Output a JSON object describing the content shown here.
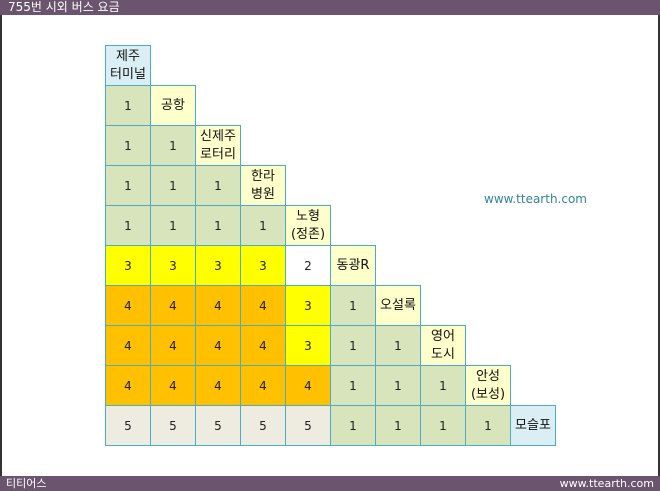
{
  "title": "755번 시외 버스 요금",
  "footer": {
    "left": "티티어스",
    "right": "www.ttearth.com"
  },
  "watermark": "www.ttearth.com",
  "colors": {
    "header_blue": "#daeef3",
    "header_yellow": "#ffffcc",
    "green": "#d7e4bc",
    "yellow": "#ffff00",
    "orange": "#ffc000",
    "grey": "#eeece1",
    "white": "#ffffff",
    "border": "#4bacc6"
  },
  "rows": [
    {
      "stop": "제주\n터미널",
      "stop_color": "header_blue",
      "fares": []
    },
    {
      "stop": "공항",
      "stop_color": "header_yellow",
      "fares": [
        {
          "v": "1",
          "c": "green"
        }
      ]
    },
    {
      "stop": "신제주\n로터리",
      "stop_color": "header_yellow",
      "fares": [
        {
          "v": "1",
          "c": "green"
        },
        {
          "v": "1",
          "c": "green"
        }
      ]
    },
    {
      "stop": "한라\n병원",
      "stop_color": "header_yellow",
      "fares": [
        {
          "v": "1",
          "c": "green"
        },
        {
          "v": "1",
          "c": "green"
        },
        {
          "v": "1",
          "c": "green"
        }
      ]
    },
    {
      "stop": "노형\n(정존)",
      "stop_color": "header_yellow",
      "fares": [
        {
          "v": "1",
          "c": "green"
        },
        {
          "v": "1",
          "c": "green"
        },
        {
          "v": "1",
          "c": "green"
        },
        {
          "v": "1",
          "c": "green"
        }
      ]
    },
    {
      "stop": "동광R",
      "stop_color": "header_yellow",
      "fares": [
        {
          "v": "3",
          "c": "yellow"
        },
        {
          "v": "3",
          "c": "yellow"
        },
        {
          "v": "3",
          "c": "yellow"
        },
        {
          "v": "3",
          "c": "yellow"
        },
        {
          "v": "2",
          "c": "white"
        }
      ]
    },
    {
      "stop": "오설록",
      "stop_color": "header_yellow",
      "fares": [
        {
          "v": "4",
          "c": "orange"
        },
        {
          "v": "4",
          "c": "orange"
        },
        {
          "v": "4",
          "c": "orange"
        },
        {
          "v": "4",
          "c": "orange"
        },
        {
          "v": "3",
          "c": "yellow"
        },
        {
          "v": "1",
          "c": "green"
        }
      ]
    },
    {
      "stop": "영어\n도시",
      "stop_color": "header_yellow",
      "fares": [
        {
          "v": "4",
          "c": "orange"
        },
        {
          "v": "4",
          "c": "orange"
        },
        {
          "v": "4",
          "c": "orange"
        },
        {
          "v": "4",
          "c": "orange"
        },
        {
          "v": "3",
          "c": "yellow"
        },
        {
          "v": "1",
          "c": "green"
        },
        {
          "v": "1",
          "c": "green"
        }
      ]
    },
    {
      "stop": "안성\n(보성)",
      "stop_color": "header_yellow",
      "fares": [
        {
          "v": "4",
          "c": "orange"
        },
        {
          "v": "4",
          "c": "orange"
        },
        {
          "v": "4",
          "c": "orange"
        },
        {
          "v": "4",
          "c": "orange"
        },
        {
          "v": "4",
          "c": "orange"
        },
        {
          "v": "1",
          "c": "green"
        },
        {
          "v": "1",
          "c": "green"
        },
        {
          "v": "1",
          "c": "green"
        }
      ]
    },
    {
      "stop": "모슬포",
      "stop_color": "header_blue",
      "fares": [
        {
          "v": "5",
          "c": "grey"
        },
        {
          "v": "5",
          "c": "grey"
        },
        {
          "v": "5",
          "c": "grey"
        },
        {
          "v": "5",
          "c": "grey"
        },
        {
          "v": "5",
          "c": "grey"
        },
        {
          "v": "1",
          "c": "green"
        },
        {
          "v": "1",
          "c": "green"
        },
        {
          "v": "1",
          "c": "green"
        },
        {
          "v": "1",
          "c": "green"
        }
      ]
    }
  ]
}
